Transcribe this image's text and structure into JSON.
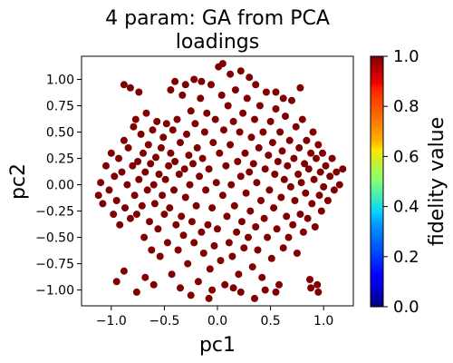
{
  "chart_data": {
    "type": "scatter",
    "title_lines": [
      "4 param:  GA from PCA",
      "loadings"
    ],
    "xlabel": "pc1",
    "ylabel": "pc2",
    "xlim": [
      -1.28,
      1.28
    ],
    "ylim": [
      -1.15,
      1.22
    ],
    "xticks": [
      -1.0,
      -0.5,
      0.0,
      0.5,
      1.0
    ],
    "xtick_labels": [
      "−1.0",
      "−0.5",
      "0.0",
      "0.5",
      "1.0"
    ],
    "yticks": [
      1.0,
      0.75,
      0.5,
      0.25,
      0.0,
      -0.25,
      -0.5,
      -0.75,
      -1.0
    ],
    "ytick_labels": [
      "1.00",
      "0.75",
      "0.50",
      "0.25",
      "0.00",
      "−0.25",
      "−0.50",
      "−0.75",
      "−1.00"
    ],
    "point_color": "#800000",
    "colormap": "jet",
    "colorbar": {
      "label": "fidelity value",
      "range": [
        0.0,
        1.0
      ],
      "ticks": [
        0.0,
        0.2,
        0.4,
        0.6,
        0.8,
        1.0
      ],
      "tick_labels": [
        "0.0",
        "0.2",
        "0.4",
        "0.6",
        "0.8",
        "1.0"
      ]
    },
    "points": [
      [
        -1.12,
        -0.1
      ],
      [
        -1.1,
        0.02
      ],
      [
        -1.08,
        -0.18
      ],
      [
        -1.05,
        0.18
      ],
      [
        -1.02,
        -0.05
      ],
      [
        -1.0,
        0.3
      ],
      [
        -0.98,
        -0.28
      ],
      [
        -0.97,
        0.08
      ],
      [
        -0.95,
        -0.15
      ],
      [
        -0.93,
        0.25
      ],
      [
        -0.92,
        -0.38
      ],
      [
        -0.9,
        0.12
      ],
      [
        -0.88,
        0.42
      ],
      [
        -0.87,
        -0.22
      ],
      [
        -0.85,
        0.0
      ],
      [
        -0.84,
        0.35
      ],
      [
        -0.82,
        -0.32
      ],
      [
        -0.8,
        0.18
      ],
      [
        -0.79,
        0.55
      ],
      [
        -0.78,
        -0.1
      ],
      [
        -0.77,
        0.62
      ],
      [
        -0.76,
        -0.28
      ],
      [
        -0.75,
        0.22
      ],
      [
        -0.74,
        0.05
      ],
      [
        -0.72,
        0.48
      ],
      [
        -0.71,
        -0.2
      ],
      [
        -0.7,
        0.3
      ],
      [
        -0.69,
        -0.5
      ],
      [
        -0.68,
        0.12
      ],
      [
        -0.67,
        0.68
      ],
      [
        -0.66,
        -0.05
      ],
      [
        -0.65,
        0.38
      ],
      [
        -0.64,
        -0.35
      ],
      [
        -0.63,
        0.2
      ],
      [
        -0.62,
        -0.62
      ],
      [
        -0.61,
        0.52
      ],
      [
        -0.6,
        0.0
      ],
      [
        -0.59,
        -0.18
      ],
      [
        -0.58,
        0.26
      ],
      [
        -0.57,
        0.6
      ],
      [
        -0.56,
        -0.42
      ],
      [
        -0.55,
        0.1
      ],
      [
        -0.54,
        -0.68
      ],
      [
        -0.53,
        0.35
      ],
      [
        -0.52,
        -0.1
      ],
      [
        -0.51,
        0.45
      ],
      [
        -0.5,
        -0.28
      ],
      [
        -0.49,
        0.05
      ],
      [
        -0.48,
        0.58
      ],
      [
        -0.47,
        -0.55
      ],
      [
        -0.46,
        0.18
      ],
      [
        -0.45,
        -0.22
      ],
      [
        -0.44,
        0.3
      ],
      [
        -0.43,
        -0.85
      ],
      [
        -0.42,
        0.52
      ],
      [
        -0.41,
        -0.05
      ],
      [
        -0.4,
        0.22
      ],
      [
        -0.39,
        -0.38
      ],
      [
        -0.38,
        0.62
      ],
      [
        -0.37,
        -0.62
      ],
      [
        -0.36,
        0.1
      ],
      [
        -0.35,
        0.4
      ],
      [
        -0.34,
        -0.3
      ],
      [
        -0.33,
        0.85
      ],
      [
        -0.32,
        -0.48
      ],
      [
        -0.31,
        0.15
      ],
      [
        -0.3,
        -0.12
      ],
      [
        -0.29,
        0.48
      ],
      [
        -0.28,
        -0.75
      ],
      [
        -0.27,
        0.28
      ],
      [
        -0.26,
        0.0
      ],
      [
        -0.25,
        0.7
      ],
      [
        -0.24,
        -0.35
      ],
      [
        -0.23,
        0.2
      ],
      [
        -0.22,
        -0.55
      ],
      [
        -0.21,
        0.58
      ],
      [
        -0.2,
        -0.2
      ],
      [
        -0.19,
        0.35
      ],
      [
        -0.18,
        -0.92
      ],
      [
        -0.17,
        0.08
      ],
      [
        -0.16,
        0.82
      ],
      [
        -0.15,
        -0.45
      ],
      [
        -0.14,
        0.25
      ],
      [
        -0.13,
        -0.65
      ],
      [
        -0.12,
        0.5
      ],
      [
        -0.11,
        -0.05
      ],
      [
        -0.1,
        0.68
      ],
      [
        -0.09,
        -0.38
      ],
      [
        -0.08,
        0.15
      ],
      [
        -0.07,
        -0.8
      ],
      [
        -0.06,
        0.95
      ],
      [
        -0.05,
        -0.22
      ],
      [
        -0.04,
        0.4
      ],
      [
        -0.03,
        -0.58
      ],
      [
        -0.02,
        0.62
      ],
      [
        -0.01,
        0.02
      ],
      [
        0.0,
        -0.42
      ],
      [
        0.01,
        1.12
      ],
      [
        0.02,
        0.3
      ],
      [
        0.03,
        -0.72
      ],
      [
        0.04,
        0.85
      ],
      [
        0.05,
        -0.1
      ],
      [
        0.06,
        0.52
      ],
      [
        0.07,
        -0.95
      ],
      [
        0.08,
        0.18
      ],
      [
        0.09,
        -0.3
      ],
      [
        0.1,
        0.75
      ],
      [
        0.11,
        -0.55
      ],
      [
        0.12,
        0.38
      ],
      [
        0.13,
        0.0
      ],
      [
        0.14,
        -0.68
      ],
      [
        0.15,
        0.6
      ],
      [
        0.16,
        -0.2
      ],
      [
        0.17,
        0.9
      ],
      [
        0.18,
        -0.45
      ],
      [
        0.19,
        0.22
      ],
      [
        0.2,
        -0.85
      ],
      [
        0.21,
        0.5
      ],
      [
        0.22,
        0.08
      ],
      [
        0.23,
        -0.35
      ],
      [
        0.24,
        0.68
      ],
      [
        0.25,
        -0.6
      ],
      [
        0.26,
        0.3
      ],
      [
        0.27,
        -0.08
      ],
      [
        0.28,
        0.82
      ],
      [
        0.29,
        -0.5
      ],
      [
        0.3,
        0.12
      ],
      [
        0.31,
        -0.25
      ],
      [
        0.32,
        0.45
      ],
      [
        0.33,
        -0.78
      ],
      [
        0.34,
        0.2
      ],
      [
        0.35,
        0.62
      ],
      [
        0.36,
        -0.4
      ],
      [
        0.37,
        0.02
      ],
      [
        0.38,
        -0.62
      ],
      [
        0.39,
        0.35
      ],
      [
        0.4,
        0.75
      ],
      [
        0.41,
        -0.15
      ],
      [
        0.42,
        -0.88
      ],
      [
        0.43,
        0.5
      ],
      [
        0.44,
        -0.32
      ],
      [
        0.45,
        0.15
      ],
      [
        0.46,
        0.88
      ],
      [
        0.47,
        -0.5
      ],
      [
        0.48,
        0.28
      ],
      [
        0.49,
        -0.05
      ],
      [
        0.5,
        0.6
      ],
      [
        0.51,
        -0.7
      ],
      [
        0.52,
        0.4
      ],
      [
        0.53,
        -0.22
      ],
      [
        0.54,
        0.1
      ],
      [
        0.55,
        0.72
      ],
      [
        0.56,
        -0.42
      ],
      [
        0.57,
        0.22
      ],
      [
        0.58,
        -0.95
      ],
      [
        0.59,
        0.5
      ],
      [
        0.6,
        -0.12
      ],
      [
        0.61,
        0.32
      ],
      [
        0.62,
        -0.6
      ],
      [
        0.63,
        0.05
      ],
      [
        0.64,
        0.65
      ],
      [
        0.65,
        -0.3
      ],
      [
        0.66,
        0.18
      ],
      [
        0.67,
        -0.5
      ],
      [
        0.68,
        0.42
      ],
      [
        0.69,
        -0.02
      ],
      [
        0.7,
        0.8
      ],
      [
        0.71,
        -0.38
      ],
      [
        0.72,
        0.25
      ],
      [
        0.73,
        -0.15
      ],
      [
        0.74,
        0.55
      ],
      [
        0.75,
        -0.65
      ],
      [
        0.76,
        0.1
      ],
      [
        0.77,
        0.35
      ],
      [
        0.78,
        -0.28
      ],
      [
        0.79,
        0.02
      ],
      [
        0.8,
        0.62
      ],
      [
        0.81,
        -0.45
      ],
      [
        0.82,
        0.2
      ],
      [
        0.83,
        -0.08
      ],
      [
        0.84,
        0.42
      ],
      [
        0.85,
        -0.32
      ],
      [
        0.86,
        0.15
      ],
      [
        0.87,
        -0.9
      ],
      [
        0.88,
        0.3
      ],
      [
        0.89,
        -0.18
      ],
      [
        0.9,
        0.5
      ],
      [
        0.91,
        0.05
      ],
      [
        0.92,
        -0.4
      ],
      [
        0.93,
        0.25
      ],
      [
        0.94,
        -0.95
      ],
      [
        0.95,
        0.38
      ],
      [
        0.96,
        -0.1
      ],
      [
        0.97,
        0.12
      ],
      [
        0.98,
        -0.25
      ],
      [
        0.99,
        0.3
      ],
      [
        1.0,
        -0.02
      ],
      [
        1.02,
        0.18
      ],
      [
        1.04,
        -0.15
      ],
      [
        1.06,
        0.08
      ],
      [
        1.08,
        0.25
      ],
      [
        1.1,
        -0.05
      ],
      [
        1.12,
        0.12
      ],
      [
        1.15,
        0.0
      ],
      [
        1.18,
        0.15
      ],
      [
        -0.88,
        0.95
      ],
      [
        -0.82,
        0.92
      ],
      [
        -0.74,
        0.88
      ],
      [
        -0.44,
        0.9
      ],
      [
        -0.4,
        0.98
      ],
      [
        -0.3,
        0.95
      ],
      [
        -0.22,
        1.0
      ],
      [
        0.05,
        1.15
      ],
      [
        0.12,
        1.05
      ],
      [
        0.22,
        1.08
      ],
      [
        0.36,
        0.95
      ],
      [
        0.55,
        0.88
      ],
      [
        0.78,
        0.92
      ],
      [
        -0.95,
        -0.92
      ],
      [
        -0.88,
        -0.82
      ],
      [
        -0.76,
        -1.02
      ],
      [
        -0.68,
        -0.88
      ],
      [
        -0.35,
        -0.98
      ],
      [
        -0.25,
        -1.05
      ],
      [
        -0.08,
        -1.08
      ],
      [
        0.22,
        -1.02
      ],
      [
        0.35,
        -1.08
      ],
      [
        0.55,
        -1.02
      ],
      [
        0.88,
        -0.98
      ],
      [
        0.95,
        -1.02
      ],
      [
        -0.05,
        -1.0
      ],
      [
        0.15,
        -0.98
      ],
      [
        0.45,
        -1.0
      ],
      [
        -0.6,
        -0.95
      ],
      [
        -0.15,
        0.98
      ],
      [
        0.3,
        1.02
      ],
      [
        0.62,
        0.82
      ]
    ]
  }
}
